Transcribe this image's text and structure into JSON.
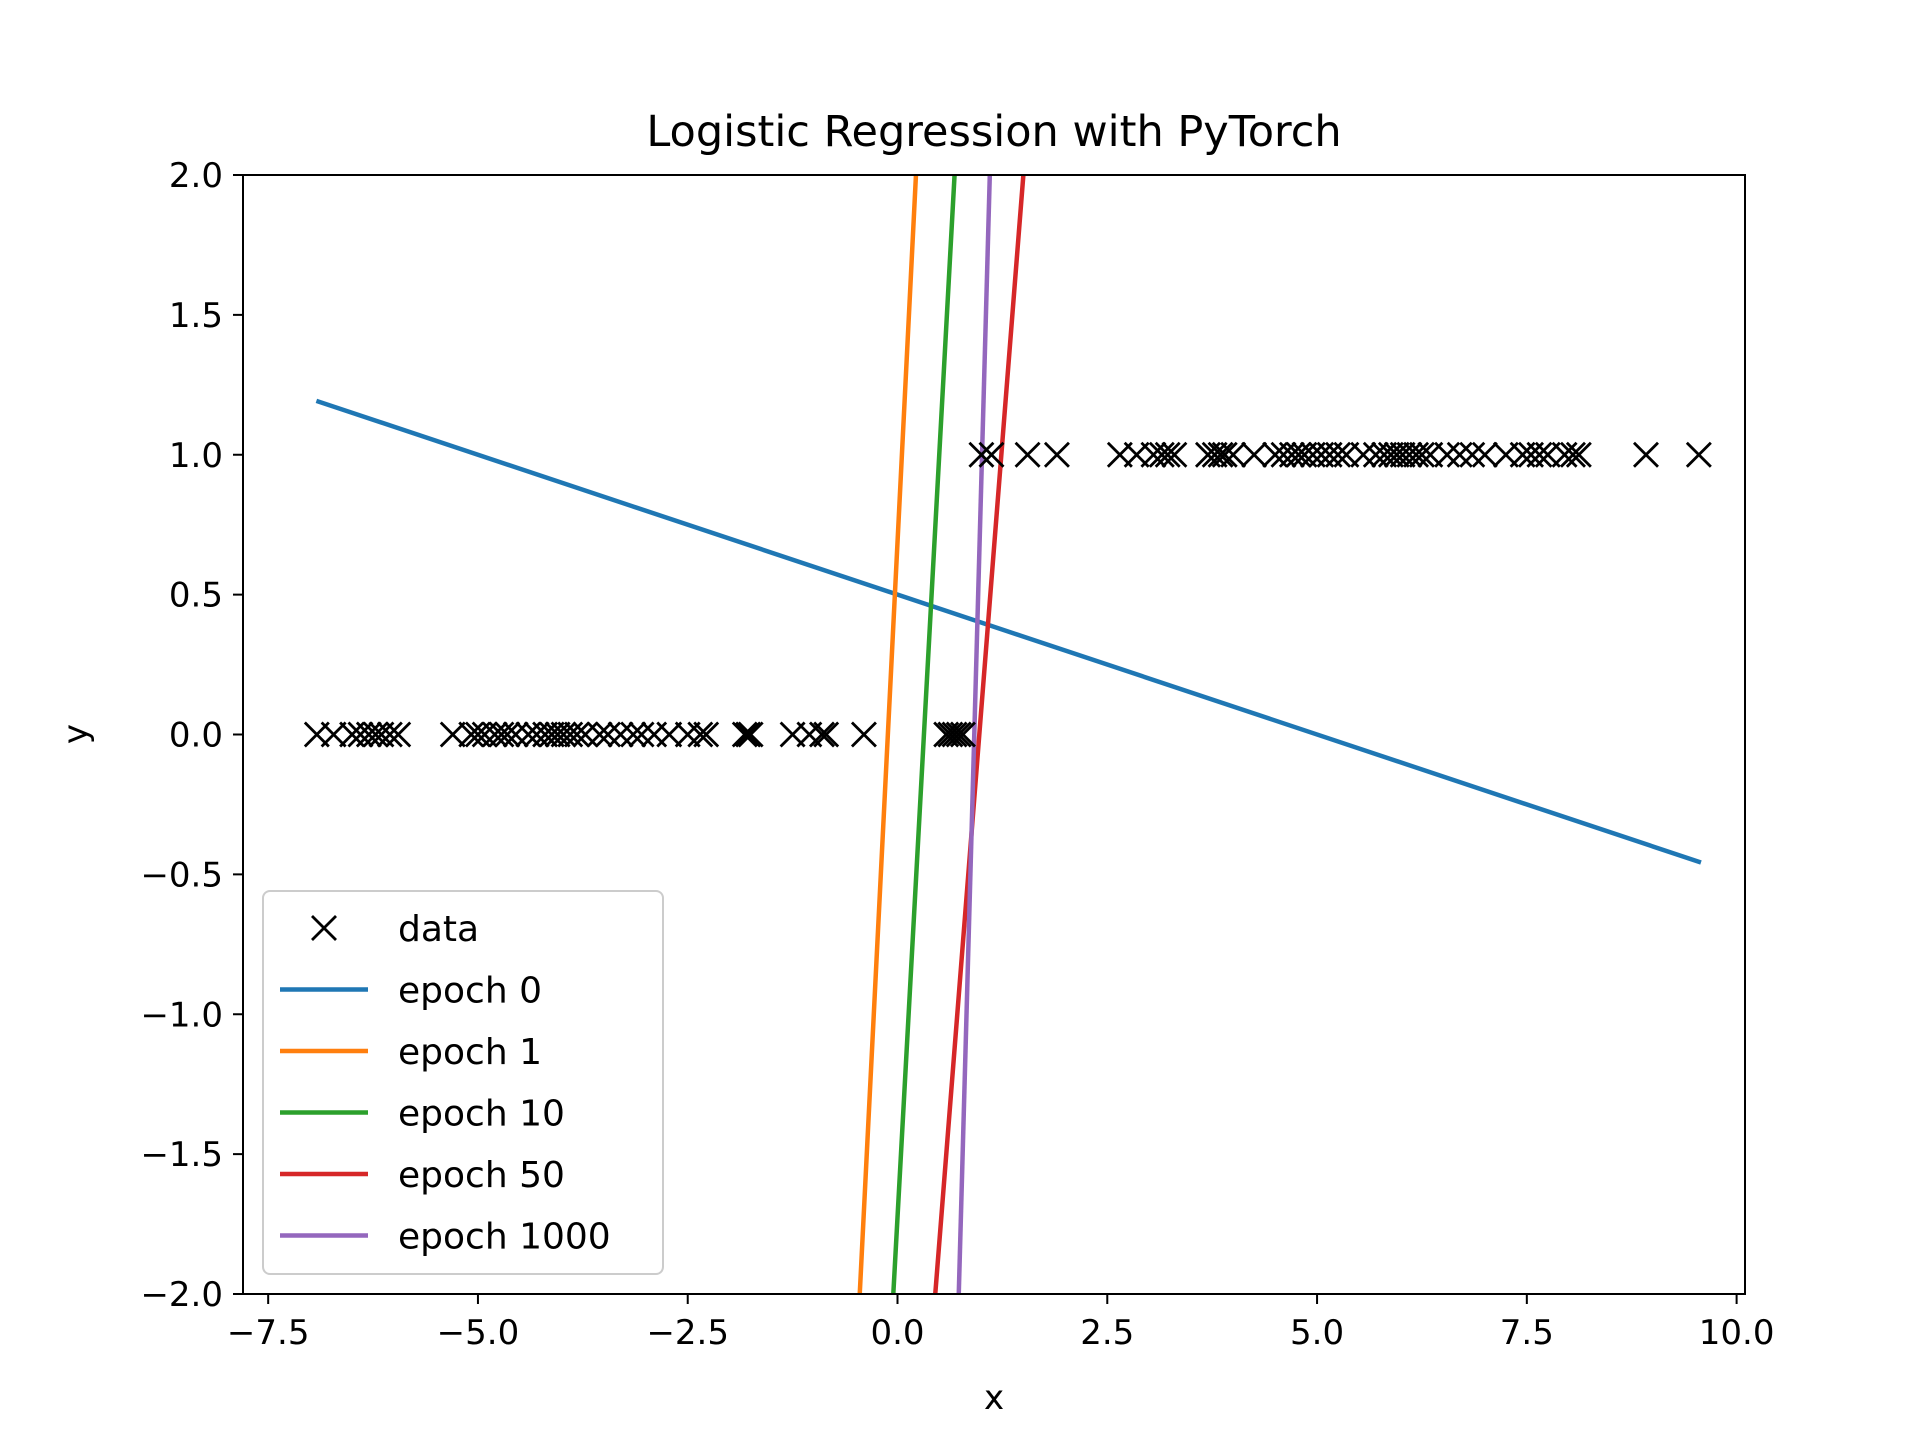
{
  "chart_data": {
    "type": "line",
    "title": "Logistic Regression with PyTorch",
    "xlabel": "x",
    "ylabel": "y",
    "xlim": [
      -7.8,
      10.1
    ],
    "ylim": [
      -2.0,
      2.0
    ],
    "xticks": [
      -7.5,
      -5.0,
      -2.5,
      0.0,
      2.5,
      5.0,
      7.5,
      10.0
    ],
    "xtick_labels": [
      "−7.5",
      "−5.0",
      "−2.5",
      "0.0",
      "2.5",
      "5.0",
      "7.5",
      "10.0"
    ],
    "yticks": [
      2.0,
      1.5,
      1.0,
      0.5,
      0.0,
      -0.5,
      -1.0,
      -1.5,
      -2.0
    ],
    "ytick_labels": [
      "2.0",
      "1.5",
      "1.0",
      "0.5",
      "0.0",
      "−0.5",
      "−1.0",
      "−1.5",
      "−2.0"
    ],
    "grid": false,
    "legend_position": "lower left",
    "scatter": {
      "name": "data",
      "marker": "x",
      "color": "#000000",
      "points": [
        [
          -6.92,
          0
        ],
        [
          -6.72,
          0
        ],
        [
          -6.5,
          0
        ],
        [
          -6.4,
          0
        ],
        [
          -6.3,
          0
        ],
        [
          -6.22,
          0
        ],
        [
          -6.15,
          0
        ],
        [
          -6.05,
          0
        ],
        [
          -5.95,
          0
        ],
        [
          -5.3,
          0
        ],
        [
          -5.08,
          0
        ],
        [
          -5.0,
          0
        ],
        [
          -4.92,
          0
        ],
        [
          -4.8,
          0
        ],
        [
          -4.72,
          0
        ],
        [
          -4.65,
          0
        ],
        [
          -4.55,
          0
        ],
        [
          -4.4,
          0
        ],
        [
          -4.3,
          0
        ],
        [
          -4.2,
          0
        ],
        [
          -4.12,
          0
        ],
        [
          -4.05,
          0
        ],
        [
          -3.98,
          0
        ],
        [
          -3.9,
          0
        ],
        [
          -3.82,
          0
        ],
        [
          -3.72,
          0
        ],
        [
          -3.55,
          0
        ],
        [
          -3.45,
          0
        ],
        [
          -3.3,
          0
        ],
        [
          -3.15,
          0
        ],
        [
          -3.05,
          0
        ],
        [
          -2.9,
          0
        ],
        [
          -2.72,
          0
        ],
        [
          -2.5,
          0
        ],
        [
          -2.35,
          0
        ],
        [
          -2.28,
          0
        ],
        [
          -1.82,
          0
        ],
        [
          -1.78,
          0
        ],
        [
          -1.75,
          0
        ],
        [
          -1.25,
          0
        ],
        [
          -1.05,
          0
        ],
        [
          -0.9,
          0
        ],
        [
          -0.85,
          0
        ],
        [
          -0.4,
          0
        ],
        [
          0.58,
          0
        ],
        [
          0.63,
          0
        ],
        [
          0.68,
          0
        ],
        [
          0.73,
          0
        ],
        [
          0.78,
          0
        ],
        [
          1.0,
          1
        ],
        [
          1.12,
          1
        ],
        [
          1.55,
          1
        ],
        [
          1.9,
          1
        ],
        [
          2.65,
          1
        ],
        [
          2.85,
          1
        ],
        [
          3.05,
          1
        ],
        [
          3.15,
          1
        ],
        [
          3.22,
          1
        ],
        [
          3.3,
          1
        ],
        [
          3.7,
          1
        ],
        [
          3.78,
          1
        ],
        [
          3.85,
          1
        ],
        [
          3.9,
          1
        ],
        [
          4.0,
          1
        ],
        [
          4.25,
          1
        ],
        [
          4.5,
          1
        ],
        [
          4.6,
          1
        ],
        [
          4.7,
          1
        ],
        [
          4.78,
          1
        ],
        [
          4.85,
          1
        ],
        [
          4.95,
          1
        ],
        [
          5.05,
          1
        ],
        [
          5.15,
          1
        ],
        [
          5.25,
          1
        ],
        [
          5.35,
          1
        ],
        [
          5.55,
          1
        ],
        [
          5.7,
          1
        ],
        [
          5.8,
          1
        ],
        [
          5.88,
          1
        ],
        [
          5.95,
          1
        ],
        [
          6.02,
          1
        ],
        [
          6.1,
          1
        ],
        [
          6.18,
          1
        ],
        [
          6.25,
          1
        ],
        [
          6.35,
          1
        ],
        [
          6.55,
          1
        ],
        [
          6.7,
          1
        ],
        [
          6.85,
          1
        ],
        [
          7.0,
          1
        ],
        [
          7.25,
          1
        ],
        [
          7.45,
          1
        ],
        [
          7.55,
          1
        ],
        [
          7.65,
          1
        ],
        [
          7.75,
          1
        ],
        [
          7.95,
          1
        ],
        [
          8.05,
          1
        ],
        [
          8.12,
          1
        ],
        [
          8.92,
          1
        ],
        [
          9.55,
          1
        ]
      ]
    },
    "series": [
      {
        "name": "epoch 0",
        "color": "#1f77b4",
        "x": [
          -6.9,
          9.55
        ],
        "y": [
          1.19,
          -0.455
        ]
      },
      {
        "name": "epoch 1",
        "color": "#ff7f0e",
        "x": [
          -0.45,
          0.22
        ],
        "y": [
          -2.0,
          2.0
        ]
      },
      {
        "name": "epoch 10",
        "color": "#2ca02c",
        "x": [
          -0.05,
          0.68
        ],
        "y": [
          -2.0,
          2.0
        ]
      },
      {
        "name": "epoch 50",
        "color": "#d62728",
        "x": [
          0.45,
          1.5
        ],
        "y": [
          -2.0,
          2.0
        ]
      },
      {
        "name": "epoch 1000",
        "color": "#9467bd",
        "x": [
          0.73,
          1.1
        ],
        "y": [
          -2.0,
          2.0
        ]
      }
    ]
  }
}
